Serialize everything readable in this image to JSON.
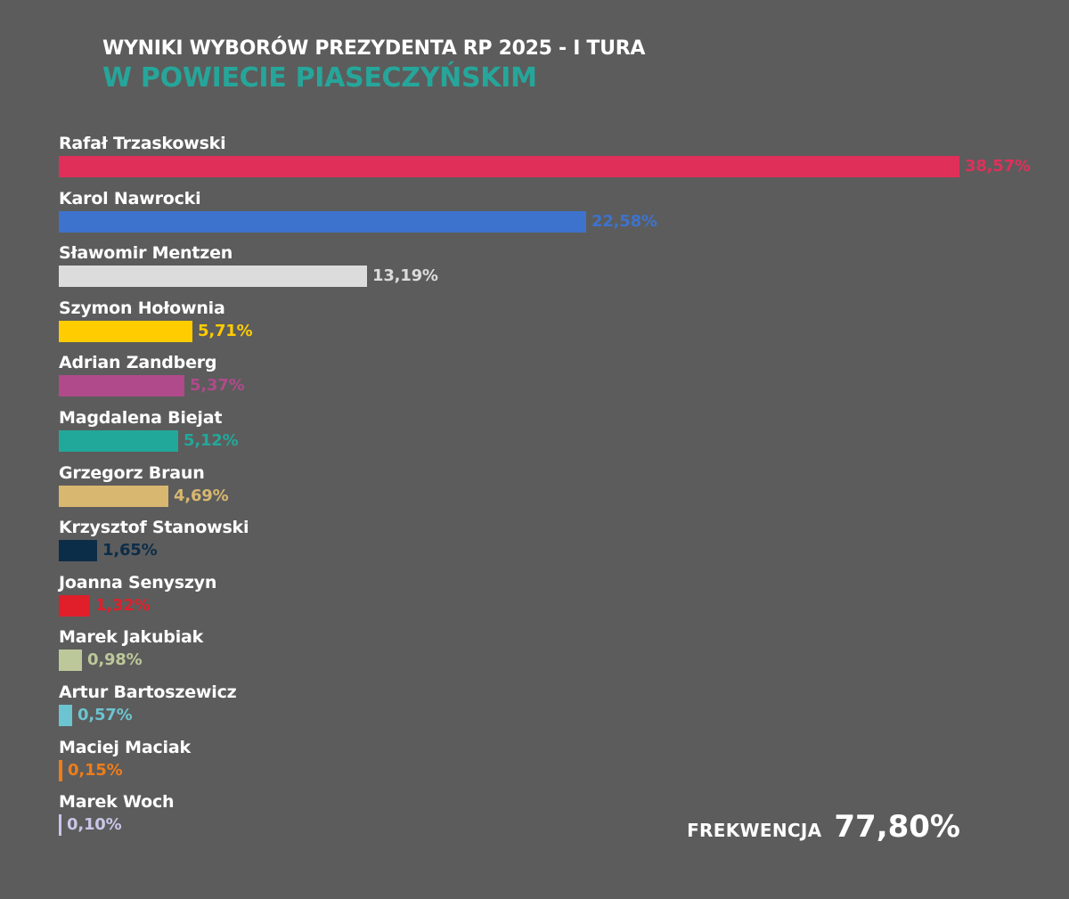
{
  "header": {
    "line1": "WYNIKI WYBORÓW PREZYDENTA RP 2025 - I TURA",
    "line2": "W POWIECIE PIASECZYŃSKIM"
  },
  "turnout": {
    "label": "FREKWENCJA",
    "value": "77,80%"
  },
  "chart_data": {
    "type": "bar",
    "orientation": "horizontal",
    "title": "WYNIKI WYBORÓW PREZYDENTA RP 2025 - I TURA W POWIECIE PIASECZYŃSKIM",
    "categories": [
      "Rafał Trzaskowski",
      "Karol Nawrocki",
      "Sławomir Mentzen",
      "Szymon Hołownia",
      "Adrian Zandberg",
      "Magdalena Biejat",
      "Grzegorz Braun",
      "Krzysztof Stanowski",
      "Joanna Senyszyn",
      "Marek Jakubiak",
      "Artur Bartoszewicz",
      "Maciej Maciak",
      "Marek Woch"
    ],
    "values": [
      38.57,
      22.58,
      13.19,
      5.71,
      5.37,
      5.12,
      4.69,
      1.65,
      1.32,
      0.98,
      0.57,
      0.15,
      0.1
    ],
    "value_labels": [
      "38,57%",
      "22,58%",
      "13,19%",
      "5,71%",
      "5,37%",
      "5,12%",
      "4,69%",
      "1,65%",
      "1,32%",
      "0,98%",
      "0,57%",
      "0,15%",
      "0,10%"
    ],
    "colors": [
      "#e0305a",
      "#3d73cc",
      "#dcdcdc",
      "#ffcc00",
      "#b04a8a",
      "#22a89a",
      "#d8b870",
      "#0c2d48",
      "#e01f2a",
      "#bcc89a",
      "#6cc4d0",
      "#ef7d1a",
      "#c9c6e8"
    ],
    "label_colors": [
      "#e0305a",
      "#3d73cc",
      "#dcdcdc",
      "#ffcc00",
      "#b04a8a",
      "#22a89a",
      "#d8b870",
      "#0c2d48",
      "#e01f2a",
      "#bcc89a",
      "#6cc4d0",
      "#ef7d1a",
      "#c9c6e8"
    ],
    "xlim": [
      0,
      38.57
    ],
    "grid": false,
    "legend": "none"
  }
}
